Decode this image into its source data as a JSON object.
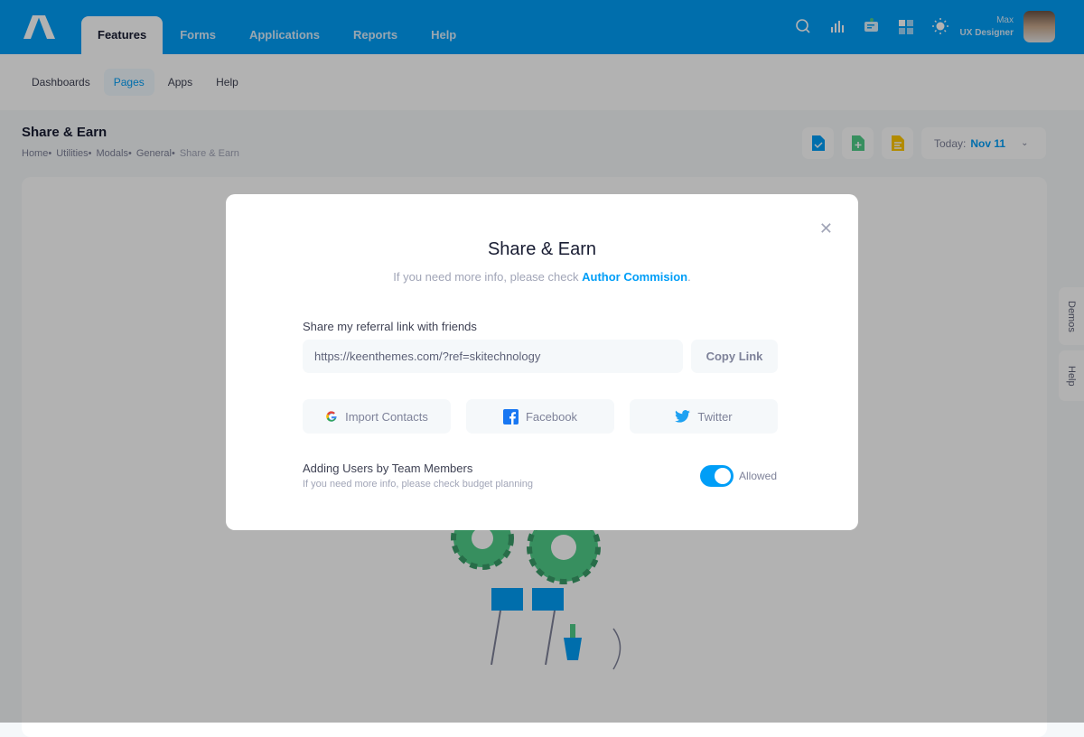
{
  "topnav": {
    "tabs": [
      "Features",
      "Forms",
      "Applications",
      "Reports",
      "Help"
    ],
    "active": "Features"
  },
  "user": {
    "name": "Max",
    "role": "UX Designer"
  },
  "subnav": {
    "items": [
      "Dashboards",
      "Pages",
      "Apps",
      "Help"
    ],
    "active": "Pages"
  },
  "page": {
    "title": "Share & Earn",
    "breadcrumbs": [
      "Home•",
      "Utilities•",
      "Modals•",
      "General•",
      "Share & Earn"
    ]
  },
  "toolbar": {
    "today_label": "Today:",
    "today_value": "Nov 11"
  },
  "side_tabs": [
    "Demos",
    "Help"
  ],
  "modal": {
    "title": "Share & Earn",
    "subtitle": "If you need more info, please check ",
    "subtitle_link": "Author Commision",
    "subtitle_end": ".",
    "referral_label": "Share my referral link with friends",
    "referral_url": "https://keenthemes.com/?ref=skitechnology",
    "copy_label": "Copy Link",
    "social": [
      "Import Contacts",
      "Facebook",
      "Twitter"
    ],
    "setting_title": "Adding Users by Team Members",
    "setting_sub": "If you need more info, please check budget planning",
    "toggle_label": "Allowed",
    "toggle_on": true
  },
  "colors": {
    "primary": "#009ef7",
    "facebook": "#1877f2",
    "twitter": "#1da1f2"
  }
}
